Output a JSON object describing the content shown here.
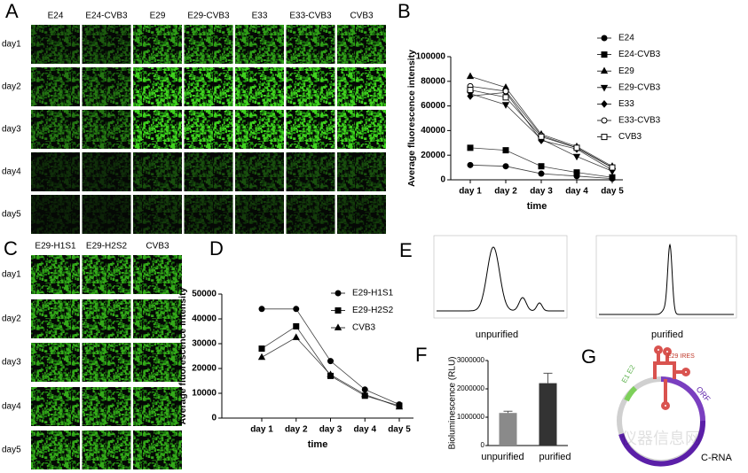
{
  "panel_labels": {
    "a": "A",
    "b": "B",
    "c": "C",
    "d": "D",
    "e": "E",
    "f": "F",
    "g": "G"
  },
  "panel_a": {
    "columns": [
      "E24",
      "E24-CVB3",
      "E29",
      "E29-CVB3",
      "E33",
      "E33-CVB3",
      "CVB3"
    ],
    "rows": [
      "day1",
      "day2",
      "day3",
      "day4",
      "day5"
    ]
  },
  "panel_c": {
    "columns": [
      "E29-H1S1",
      "E29-H2S2",
      "CVB3"
    ],
    "rows": [
      "day1",
      "day2",
      "day3",
      "day4",
      "day5"
    ]
  },
  "panel_e": {
    "left_label": "unpurified",
    "right_label": "purified"
  },
  "panel_g": {
    "ires": "E29 IRES",
    "e1e2": "E1 E2",
    "orf": "ORF",
    "construct": "C-RNA"
  },
  "watermark": "仪器信息网",
  "chart_data": [
    {
      "type": "line",
      "x_label": "time",
      "y_label": "Average fluorescence intensity",
      "categories": [
        "day 1",
        "day 2",
        "day 3",
        "day 4",
        "day 5"
      ],
      "ylim": [
        0,
        100000
      ],
      "yticks": [
        0,
        20000,
        40000,
        60000,
        80000,
        100000
      ],
      "series": [
        {
          "name": "E24",
          "color": "#000000",
          "marker": "circle",
          "values": [
            12000,
            11000,
            5000,
            3000,
            1000
          ]
        },
        {
          "name": "E24-CVB3",
          "color": "#000000",
          "marker": "square",
          "values": [
            26000,
            24000,
            11000,
            6000,
            2000
          ]
        },
        {
          "name": "E29",
          "color": "#000000",
          "marker": "triangle-up",
          "values": [
            84000,
            75000,
            37000,
            27000,
            11000
          ]
        },
        {
          "name": "E29-CVB3",
          "color": "#000000",
          "marker": "triangle-down",
          "values": [
            70000,
            61000,
            33000,
            19000,
            7000
          ]
        },
        {
          "name": "E33",
          "color": "#000000",
          "marker": "diamond",
          "values": [
            68000,
            71000,
            32000,
            25000,
            8000
          ]
        },
        {
          "name": "E33-CVB3",
          "color": "#000000",
          "marker": "open-circle",
          "values": [
            76000,
            72000,
            36000,
            26000,
            10000
          ]
        },
        {
          "name": "CVB3",
          "color": "#000000",
          "marker": "open-square",
          "values": [
            73000,
            67000,
            35000,
            26000,
            10000
          ]
        }
      ]
    },
    {
      "type": "line",
      "x_label": "time",
      "y_label": "Average fluorescence intensity",
      "categories": [
        "day 1",
        "day 2",
        "day 3",
        "day 4",
        "day 5"
      ],
      "ylim": [
        0,
        50000
      ],
      "yticks": [
        0,
        10000,
        20000,
        30000,
        40000,
        50000
      ],
      "series": [
        {
          "name": "E29-H1S1",
          "color": "#000000",
          "marker": "circle",
          "values": [
            44000,
            44000,
            23000,
            11500,
            5500
          ]
        },
        {
          "name": "E29-H2S2",
          "color": "#000000",
          "marker": "square",
          "values": [
            28000,
            37000,
            17000,
            9000,
            5000
          ]
        },
        {
          "name": "CVB3",
          "color": "#000000",
          "marker": "triangle-up",
          "values": [
            24500,
            32500,
            17500,
            9500,
            4500
          ]
        }
      ]
    },
    {
      "type": "bar",
      "y_label": "Bioluminescence (RLU)",
      "categories": [
        "unpurified",
        "purified"
      ],
      "values": [
        1150000,
        2200000
      ],
      "errors": [
        60000,
        350000
      ],
      "colors": [
        "#8a8a8a",
        "#333333"
      ],
      "ylim": [
        0,
        3000000
      ],
      "yticks": [
        0,
        1000000,
        2000000,
        3000000
      ]
    }
  ]
}
